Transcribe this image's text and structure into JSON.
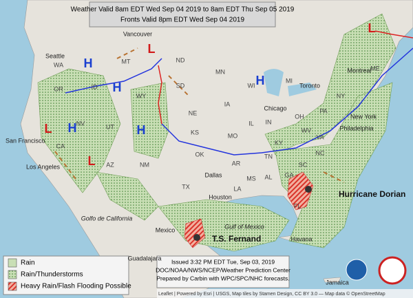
{
  "header": {
    "line1": "Weather Valid 8am EDT Wed Sep 04 2019 to 8am EDT Thu Sep 05 2019",
    "line2": "Fronts Valid 8pm EDT Wed Sep 04 2019"
  },
  "legend": [
    "Rain",
    "Rain/Thunderstorms",
    "Heavy Rain/Flash Flooding Possible"
  ],
  "issued": [
    "Issued 3:32 PM EDT Tue, Sep 03, 2019",
    "DOC/NOAA/NWS/NCEP/Weather Prediction Center",
    "Prepared by Carbin with WPC/SPC/NHC forecasts."
  ],
  "attribution": "Leaflet | Powered by Esri | USGS, Map tiles by Stamen Design, CC BY 3.0 — Map data © OpenStreetMap",
  "storms": [
    "Hurricane Dorian",
    "T.S. Fernand"
  ],
  "places": [
    "Vancouver",
    "Seattle",
    "San Francisco",
    "Los Angeles",
    "Dallas",
    "Houston",
    "Chicago",
    "Toronto",
    "Montreal",
    "New York",
    "Philadelphia",
    "Havana",
    "Jamaica",
    "Mexico",
    "Guadalajara",
    "Gulf of Mexico",
    "Golfo de California"
  ],
  "states": [
    "WA",
    "OR",
    "CA",
    "NV",
    "ID",
    "MT",
    "WY",
    "UT",
    "AZ",
    "NM",
    "ND",
    "SD",
    "NE",
    "KS",
    "OK",
    "TX",
    "MN",
    "IA",
    "MO",
    "AR",
    "LA",
    "WI",
    "IL",
    "MI",
    "IN",
    "OH",
    "KY",
    "TN",
    "MS",
    "AL",
    "GA",
    "FL",
    "SC",
    "NC",
    "VA",
    "WV",
    "PA",
    "NY",
    "ME"
  ],
  "highs": [
    "H",
    "H",
    "H",
    "H",
    "H"
  ],
  "lows": [
    "L",
    "L",
    "L",
    "L"
  ]
}
